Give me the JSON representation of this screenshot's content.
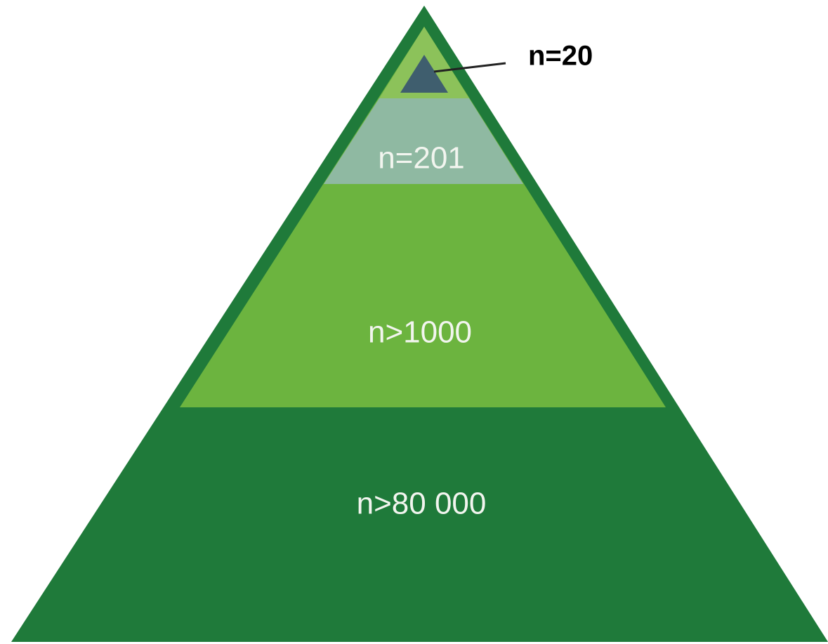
{
  "pyramid": {
    "layers": [
      {
        "label": "n=20"
      },
      {
        "label": "n=201"
      },
      {
        "label": "n>1000"
      },
      {
        "label": "n>80 000"
      }
    ]
  }
}
